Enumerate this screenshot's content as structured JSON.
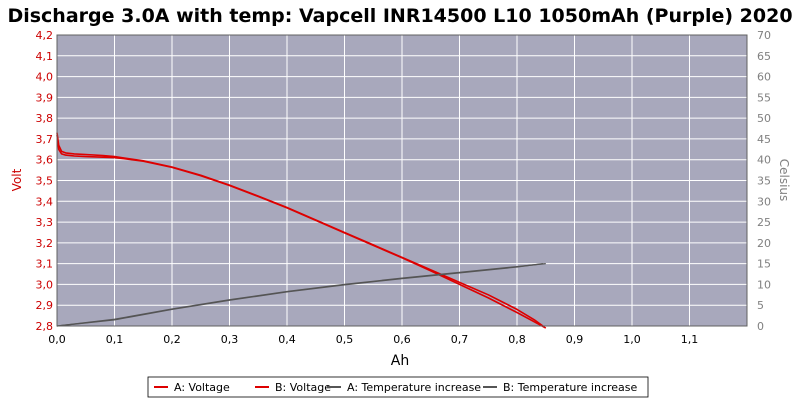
{
  "chart_data": {
    "type": "line",
    "title": "Discharge 3.0A with temp: Vapcell INR14500 L10 1050mAh (Purple) 2020",
    "xlabel": "Ah",
    "ylabel_left": "Volt",
    "ylabel_right": "Celsius",
    "xlim": [
      0,
      1.2
    ],
    "ylim_left": [
      2.8,
      4.2
    ],
    "ylim_right": [
      0,
      70
    ],
    "x_ticks": [
      "0,0",
      "0,1",
      "0,2",
      "0,3",
      "0,4",
      "0,5",
      "0,6",
      "0,7",
      "0,8",
      "0,9",
      "1,0",
      "1,1"
    ],
    "x_tick_values": [
      0,
      0.1,
      0.2,
      0.3,
      0.4,
      0.5,
      0.6,
      0.7,
      0.8,
      0.9,
      1.0,
      1.1
    ],
    "y_left_ticks": [
      "2,8",
      "2,9",
      "3,0",
      "3,1",
      "3,2",
      "3,3",
      "3,4",
      "3,5",
      "3,6",
      "3,7",
      "3,8",
      "3,9",
      "4,0",
      "4,1",
      "4,2"
    ],
    "y_left_tick_values": [
      2.8,
      2.9,
      3.0,
      3.1,
      3.2,
      3.3,
      3.4,
      3.5,
      3.6,
      3.7,
      3.8,
      3.9,
      4.0,
      4.1,
      4.2
    ],
    "y_right_ticks": [
      "0",
      "5",
      "10",
      "15",
      "20",
      "25",
      "30",
      "35",
      "40",
      "45",
      "50",
      "55",
      "60",
      "65",
      "70"
    ],
    "y_right_tick_values": [
      0,
      5,
      10,
      15,
      20,
      25,
      30,
      35,
      40,
      45,
      50,
      55,
      60,
      65,
      70
    ],
    "grid": true,
    "legend_position": "bottom",
    "colors": {
      "plot_bg": "#a8a8bc",
      "grid": "#ffffff",
      "voltage": "#dd0000",
      "temperature": "#555555"
    },
    "series": [
      {
        "name": "A: Voltage",
        "axis": "left",
        "color": "#dd0000",
        "x": [
          0,
          0.003,
          0.008,
          0.015,
          0.03,
          0.05,
          0.08,
          0.1,
          0.12,
          0.15,
          0.2,
          0.25,
          0.3,
          0.35,
          0.4,
          0.45,
          0.5,
          0.55,
          0.6,
          0.65,
          0.7,
          0.75,
          0.8,
          0.83,
          0.845
        ],
        "y": [
          3.73,
          3.67,
          3.64,
          3.633,
          3.628,
          3.625,
          3.62,
          3.615,
          3.607,
          3.595,
          3.565,
          3.525,
          3.478,
          3.425,
          3.37,
          3.31,
          3.25,
          3.19,
          3.13,
          3.07,
          3.01,
          2.95,
          2.88,
          2.83,
          2.8
        ]
      },
      {
        "name": "B: Voltage",
        "axis": "left",
        "color": "#dd0000",
        "x": [
          0,
          0.003,
          0.008,
          0.015,
          0.03,
          0.05,
          0.08,
          0.1,
          0.12,
          0.15,
          0.2,
          0.25,
          0.3,
          0.35,
          0.4,
          0.45,
          0.5,
          0.55,
          0.6,
          0.65,
          0.7,
          0.75,
          0.8,
          0.83,
          0.85
        ],
        "y": [
          3.72,
          3.65,
          3.628,
          3.622,
          3.618,
          3.615,
          3.612,
          3.61,
          3.604,
          3.593,
          3.563,
          3.523,
          3.476,
          3.423,
          3.368,
          3.308,
          3.248,
          3.188,
          3.128,
          3.065,
          3.0,
          2.935,
          2.865,
          2.82,
          2.79
        ]
      },
      {
        "name": "A: Temperature increase",
        "axis": "right",
        "color": "#555555",
        "x": [
          0,
          0.1,
          0.2,
          0.3,
          0.4,
          0.5,
          0.6,
          0.7,
          0.8,
          0.845
        ],
        "y": [
          0,
          1.5,
          4,
          6.2,
          8.2,
          9.9,
          11.4,
          12.8,
          14.2,
          15
        ]
      },
      {
        "name": "B: Temperature increase",
        "axis": "right",
        "color": "#555555",
        "x": [
          0,
          0.1,
          0.2,
          0.3,
          0.4,
          0.5,
          0.6,
          0.7,
          0.8,
          0.85
        ],
        "y": [
          0,
          1.6,
          4.1,
          6.3,
          8.3,
          10.0,
          11.5,
          12.9,
          14.3,
          15
        ]
      }
    ]
  }
}
